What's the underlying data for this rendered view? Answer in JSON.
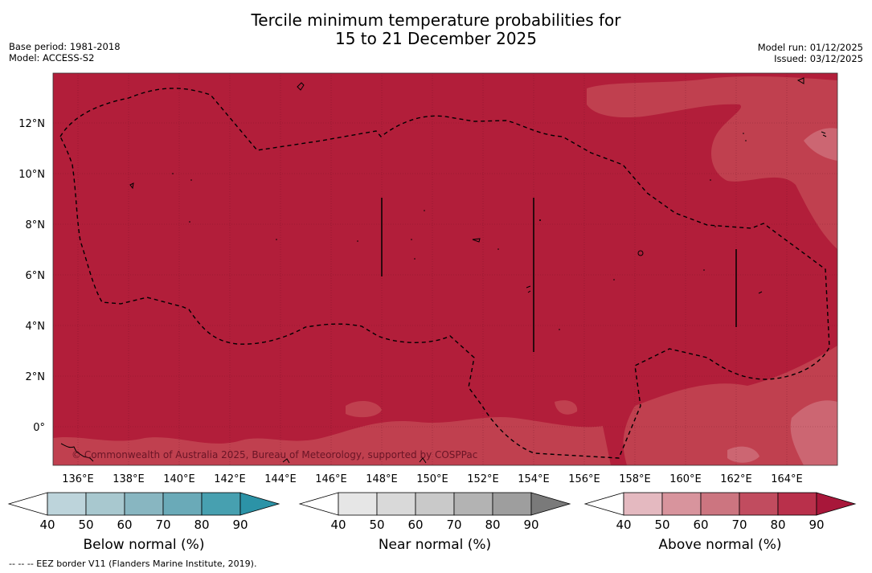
{
  "title": {
    "line1": "Tercile minimum temperature probabilities for",
    "line2": "15 to 21 December 2025"
  },
  "info_left": {
    "base_period": "Base period: 1981-2018",
    "model": "Model: ACCESS-S2"
  },
  "info_right": {
    "model_run": "Model run: 01/12/2025",
    "issued": "Issued: 03/12/2025"
  },
  "map": {
    "lat_labels": [
      "12°N",
      "10°N",
      "8°N",
      "6°N",
      "4°N",
      "2°N",
      "0°"
    ],
    "lon_labels": [
      "136°E",
      "138°E",
      "140°E",
      "142°E",
      "144°E",
      "146°E",
      "148°E",
      "150°E",
      "152°E",
      "154°E",
      "156°E",
      "158°E",
      "160°E",
      "162°E",
      "164°E"
    ],
    "copyright": "© Commonwealth of Australia 2025, Bureau of Meteorology, supported by COSPPac",
    "dominant_category": "Above normal",
    "dominant_probability_range": "80-90%"
  },
  "colorbars": [
    {
      "label": "Below normal (%)",
      "ticks": [
        "40",
        "50",
        "60",
        "70",
        "80",
        "90"
      ],
      "colors": [
        "#ffffff",
        "#bdd4db",
        "#a8c8cf",
        "#88b6c1",
        "#6aaab8",
        "#47a0b0",
        "#2c93a7"
      ]
    },
    {
      "label": "Near normal (%)",
      "ticks": [
        "40",
        "50",
        "60",
        "70",
        "80",
        "90"
      ],
      "colors": [
        "#ffffff",
        "#e6e6e6",
        "#d9d9d9",
        "#c9c9c9",
        "#b3b3b3",
        "#9e9e9e",
        "#7a7a7a"
      ]
    },
    {
      "label": "Above normal (%)",
      "ticks": [
        "40",
        "50",
        "60",
        "70",
        "80",
        "90"
      ],
      "colors": [
        "#ffffff",
        "#e4b9c0",
        "#d8949d",
        "#cc7580",
        "#c14c5f",
        "#b9304b",
        "#a8173a"
      ]
    }
  ],
  "legend": {
    "eez": "--  --  -- EEZ border V11 (Flanders Marine Institute, 2019)."
  },
  "colors": {
    "above_80_90": "#b21e3a",
    "above_70_80": "#c0404f",
    "above_60_70": "#cc6672"
  }
}
